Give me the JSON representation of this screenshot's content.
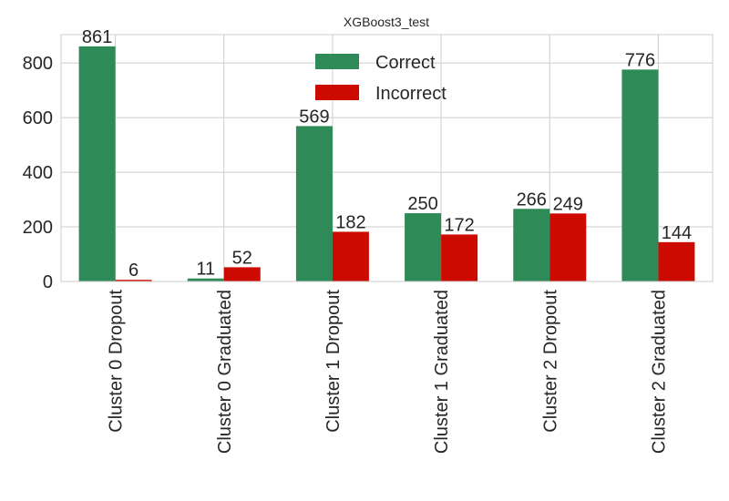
{
  "chart_data": {
    "type": "bar",
    "title": "XGBoost3_test",
    "xlabel": "",
    "ylabel": "",
    "categories": [
      "Cluster 0 Dropout",
      "Cluster 0 Graduated",
      "Cluster 1 Dropout",
      "Cluster 1 Graduated",
      "Cluster 2 Dropout",
      "Cluster 2 Graduated"
    ],
    "series": [
      {
        "name": "Correct",
        "color": "#2e8b57",
        "values": [
          861,
          11,
          569,
          250,
          266,
          776
        ]
      },
      {
        "name": "Incorrect",
        "color": "#cc0a00",
        "values": [
          6,
          52,
          182,
          172,
          249,
          144
        ]
      }
    ],
    "ylim": [
      0,
      904
    ],
    "yticks": [
      0,
      200,
      400,
      600,
      800
    ],
    "grid": true,
    "legend_position": "top-center",
    "colors": {
      "grid": "#cccccc",
      "frame": "#cccccc",
      "text": "#262626"
    }
  }
}
